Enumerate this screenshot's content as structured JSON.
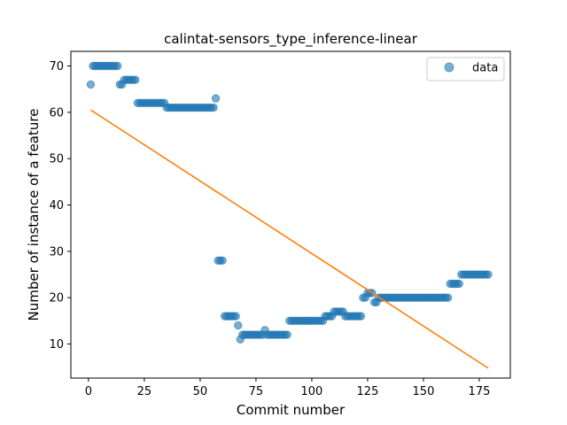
{
  "chart_data": {
    "type": "scatter",
    "title": "calintat-sensors_type_inference-linear",
    "xlabel": "Commit number",
    "ylabel": "Number of instance of a feature",
    "xlim": [
      -7.9,
      188.9
    ],
    "ylim": [
      2.65,
      73.15
    ],
    "xticks": [
      0,
      25,
      50,
      75,
      100,
      125,
      150,
      175
    ],
    "yticks": [
      10,
      20,
      30,
      40,
      50,
      60,
      70
    ],
    "grid": false,
    "legend_position": "top-right",
    "colors": {
      "data": "#1f77b4",
      "fit": "#ff7f0e"
    },
    "series": [
      {
        "name": "data",
        "kind": "scatter",
        "points": [
          [
            1,
            66
          ],
          [
            2,
            70
          ],
          [
            3,
            70
          ],
          [
            4,
            70
          ],
          [
            5,
            70
          ],
          [
            6,
            70
          ],
          [
            7,
            70
          ],
          [
            8,
            70
          ],
          [
            9,
            70
          ],
          [
            10,
            70
          ],
          [
            11,
            70
          ],
          [
            12,
            70
          ],
          [
            13,
            70
          ],
          [
            14,
            66
          ],
          [
            15,
            66
          ],
          [
            16,
            67
          ],
          [
            17,
            67
          ],
          [
            18,
            67
          ],
          [
            19,
            67
          ],
          [
            20,
            67
          ],
          [
            21,
            67
          ],
          [
            22,
            62
          ],
          [
            23,
            62
          ],
          [
            24,
            62
          ],
          [
            25,
            62
          ],
          [
            26,
            62
          ],
          [
            27,
            62
          ],
          [
            28,
            62
          ],
          [
            29,
            62
          ],
          [
            30,
            62
          ],
          [
            31,
            62
          ],
          [
            32,
            62
          ],
          [
            33,
            62
          ],
          [
            34,
            62
          ],
          [
            35,
            61
          ],
          [
            36,
            61
          ],
          [
            37,
            61
          ],
          [
            38,
            61
          ],
          [
            39,
            61
          ],
          [
            40,
            61
          ],
          [
            41,
            61
          ],
          [
            42,
            61
          ],
          [
            43,
            61
          ],
          [
            44,
            61
          ],
          [
            45,
            61
          ],
          [
            46,
            61
          ],
          [
            47,
            61
          ],
          [
            48,
            61
          ],
          [
            49,
            61
          ],
          [
            50,
            61
          ],
          [
            51,
            61
          ],
          [
            52,
            61
          ],
          [
            53,
            61
          ],
          [
            54,
            61
          ],
          [
            55,
            61
          ],
          [
            56,
            61
          ],
          [
            57,
            63
          ],
          [
            58,
            28
          ],
          [
            59,
            28
          ],
          [
            60,
            28
          ],
          [
            61,
            16
          ],
          [
            62,
            16
          ],
          [
            63,
            16
          ],
          [
            64,
            16
          ],
          [
            65,
            16
          ],
          [
            66,
            16
          ],
          [
            67,
            14
          ],
          [
            68,
            11
          ],
          [
            69,
            12
          ],
          [
            70,
            12
          ],
          [
            71,
            12
          ],
          [
            72,
            12
          ],
          [
            73,
            12
          ],
          [
            74,
            12
          ],
          [
            75,
            12
          ],
          [
            76,
            12
          ],
          [
            77,
            12
          ],
          [
            78,
            12
          ],
          [
            79,
            13
          ],
          [
            80,
            12
          ],
          [
            81,
            12
          ],
          [
            82,
            12
          ],
          [
            83,
            12
          ],
          [
            84,
            12
          ],
          [
            85,
            12
          ],
          [
            86,
            12
          ],
          [
            87,
            12
          ],
          [
            88,
            12
          ],
          [
            89,
            12
          ],
          [
            90,
            15
          ],
          [
            91,
            15
          ],
          [
            92,
            15
          ],
          [
            93,
            15
          ],
          [
            94,
            15
          ],
          [
            95,
            15
          ],
          [
            96,
            15
          ],
          [
            97,
            15
          ],
          [
            98,
            15
          ],
          [
            99,
            15
          ],
          [
            100,
            15
          ],
          [
            101,
            15
          ],
          [
            102,
            15
          ],
          [
            103,
            15
          ],
          [
            104,
            15
          ],
          [
            105,
            15
          ],
          [
            106,
            16
          ],
          [
            107,
            16
          ],
          [
            108,
            16
          ],
          [
            109,
            16
          ],
          [
            110,
            17
          ],
          [
            111,
            17
          ],
          [
            112,
            17
          ],
          [
            113,
            17
          ],
          [
            114,
            17
          ],
          [
            115,
            16
          ],
          [
            116,
            16
          ],
          [
            117,
            16
          ],
          [
            118,
            16
          ],
          [
            119,
            16
          ],
          [
            120,
            16
          ],
          [
            121,
            16
          ],
          [
            122,
            16
          ],
          [
            123,
            20
          ],
          [
            124,
            20
          ],
          [
            125,
            21
          ],
          [
            126,
            21
          ],
          [
            127,
            21
          ],
          [
            128,
            19
          ],
          [
            129,
            19
          ],
          [
            130,
            20
          ],
          [
            131,
            20
          ],
          [
            132,
            20
          ],
          [
            133,
            20
          ],
          [
            134,
            20
          ],
          [
            135,
            20
          ],
          [
            136,
            20
          ],
          [
            137,
            20
          ],
          [
            138,
            20
          ],
          [
            139,
            20
          ],
          [
            140,
            20
          ],
          [
            141,
            20
          ],
          [
            142,
            20
          ],
          [
            143,
            20
          ],
          [
            144,
            20
          ],
          [
            145,
            20
          ],
          [
            146,
            20
          ],
          [
            147,
            20
          ],
          [
            148,
            20
          ],
          [
            149,
            20
          ],
          [
            150,
            20
          ],
          [
            151,
            20
          ],
          [
            152,
            20
          ],
          [
            153,
            20
          ],
          [
            154,
            20
          ],
          [
            155,
            20
          ],
          [
            156,
            20
          ],
          [
            157,
            20
          ],
          [
            158,
            20
          ],
          [
            159,
            20
          ],
          [
            160,
            20
          ],
          [
            161,
            20
          ],
          [
            162,
            23
          ],
          [
            163,
            23
          ],
          [
            164,
            23
          ],
          [
            165,
            23
          ],
          [
            166,
            23
          ],
          [
            167,
            25
          ],
          [
            168,
            25
          ],
          [
            169,
            25
          ],
          [
            170,
            25
          ],
          [
            171,
            25
          ],
          [
            172,
            25
          ],
          [
            173,
            25
          ],
          [
            174,
            25
          ],
          [
            175,
            25
          ],
          [
            176,
            25
          ],
          [
            177,
            25
          ],
          [
            178,
            25
          ],
          [
            179,
            25
          ]
        ]
      },
      {
        "name": "",
        "kind": "line",
        "points": [
          [
            1,
            60.5
          ],
          [
            179,
            4.8
          ]
        ]
      }
    ]
  }
}
